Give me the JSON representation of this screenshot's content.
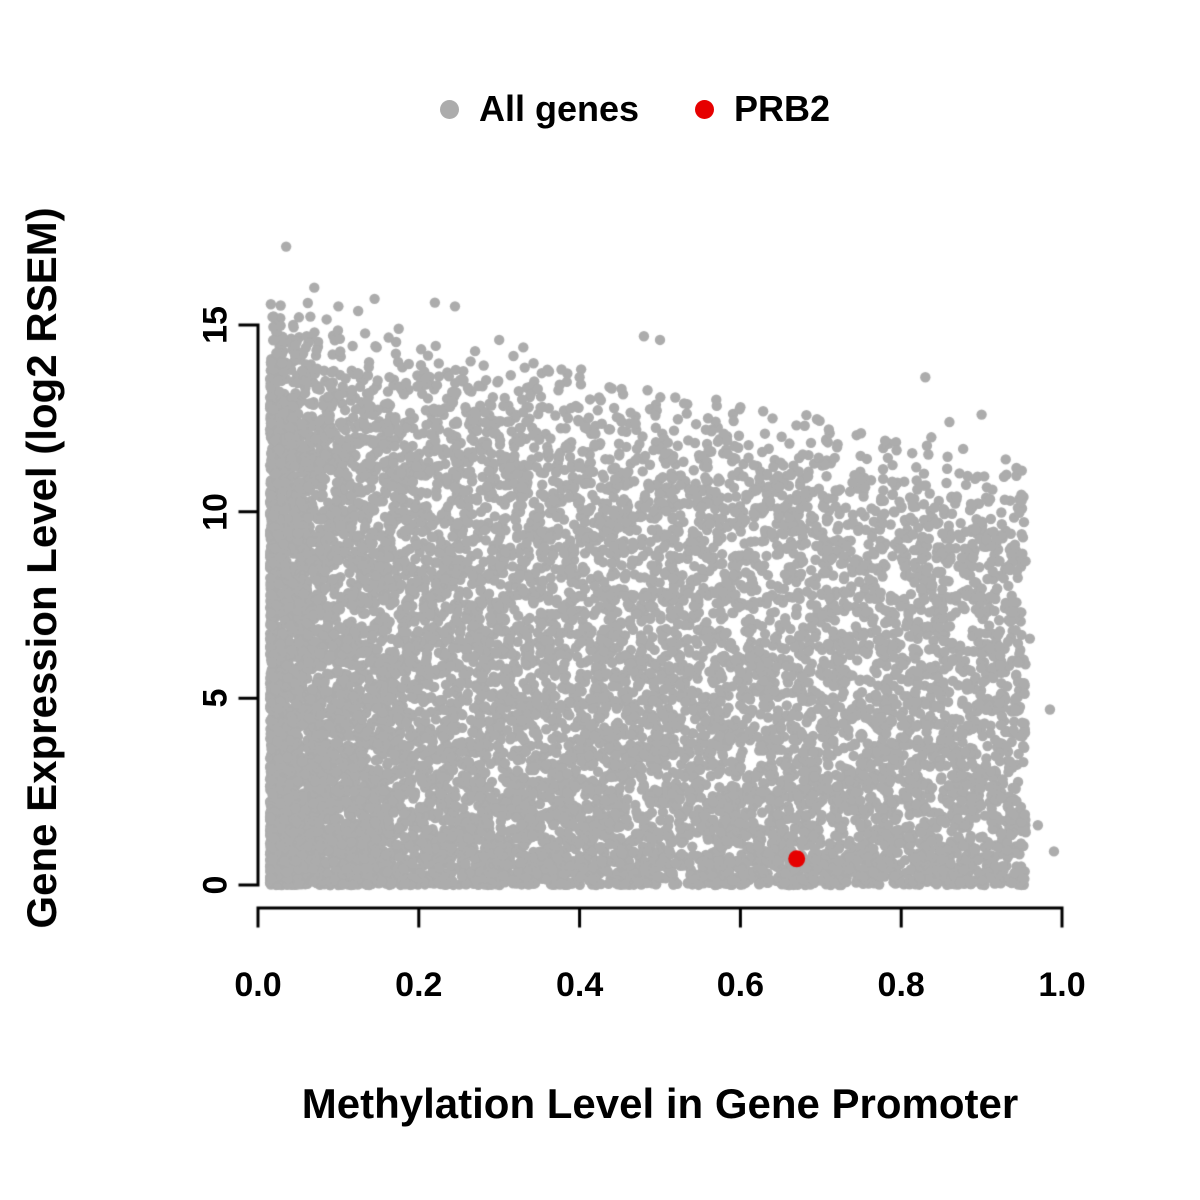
{
  "figure": {
    "background": "#ffffff",
    "text_color": "#000000"
  },
  "chart_data": {
    "type": "scatter",
    "title": "",
    "xlabel": "Methylation Level in Gene Promoter",
    "ylabel": "Gene Expression Level (log2 RSEM)",
    "xlim": [
      0.0,
      1.0
    ],
    "ylim": [
      0,
      17.5
    ],
    "grid": false,
    "legend_position": "top",
    "x_ticks": {
      "values": [
        0.0,
        0.2,
        0.4,
        0.6,
        0.8,
        1.0
      ],
      "labels": [
        "0.0",
        "0.2",
        "0.4",
        "0.6",
        "0.8",
        "1.0"
      ]
    },
    "y_ticks": {
      "values": [
        0,
        5,
        10,
        15
      ],
      "labels": [
        "0",
        "5",
        "10",
        "15"
      ]
    },
    "legend": [
      {
        "label": "All genes",
        "color": "#ACACAC"
      },
      {
        "label": "PRB2",
        "color": "#E60000"
      }
    ],
    "series": [
      {
        "name": "All genes",
        "color": "#ACACAC",
        "marker": "circle",
        "marker_radius": 5.2,
        "cloud": {
          "comment": "dense procedural cloud: ~11000 genes, density highest at low methylation and low expression, upper envelope falling from ~16 at x=0 to ~11.5 at x=1",
          "count": 11000,
          "seed": 11,
          "x_min": 0.015,
          "x_max": 0.955,
          "x_power": 1.55,
          "envelope_intercept": 16.0,
          "envelope_slope": -4.6,
          "envelope_jitter": 0.22,
          "y_power": 1.35
        },
        "outlier_points": [
          [
            0.035,
            17.1
          ],
          [
            0.07,
            16.0
          ],
          [
            0.1,
            15.5
          ],
          [
            0.145,
            15.7
          ],
          [
            0.175,
            14.9
          ],
          [
            0.22,
            15.6
          ],
          [
            0.245,
            15.5
          ],
          [
            0.27,
            14.3
          ],
          [
            0.3,
            14.6
          ],
          [
            0.33,
            14.4
          ],
          [
            0.36,
            13.8
          ],
          [
            0.4,
            13.6
          ],
          [
            0.44,
            13.3
          ],
          [
            0.48,
            14.7
          ],
          [
            0.5,
            14.6
          ],
          [
            0.53,
            12.9
          ],
          [
            0.57,
            13.0
          ],
          [
            0.6,
            12.8
          ],
          [
            0.64,
            12.5
          ],
          [
            0.68,
            12.3
          ],
          [
            0.71,
            12.2
          ],
          [
            0.75,
            12.1
          ],
          [
            0.78,
            11.9
          ],
          [
            0.83,
            13.6
          ],
          [
            0.86,
            12.4
          ],
          [
            0.9,
            12.6
          ],
          [
            0.93,
            11.4
          ],
          [
            0.95,
            11.1
          ],
          [
            0.96,
            6.6
          ],
          [
            0.985,
            4.7
          ],
          [
            0.97,
            1.6
          ],
          [
            0.99,
            0.9
          ]
        ]
      },
      {
        "name": "PRB2",
        "color": "#E60000",
        "marker": "circle",
        "marker_radius": 8.5,
        "points": [
          [
            0.67,
            0.7
          ]
        ]
      }
    ]
  }
}
